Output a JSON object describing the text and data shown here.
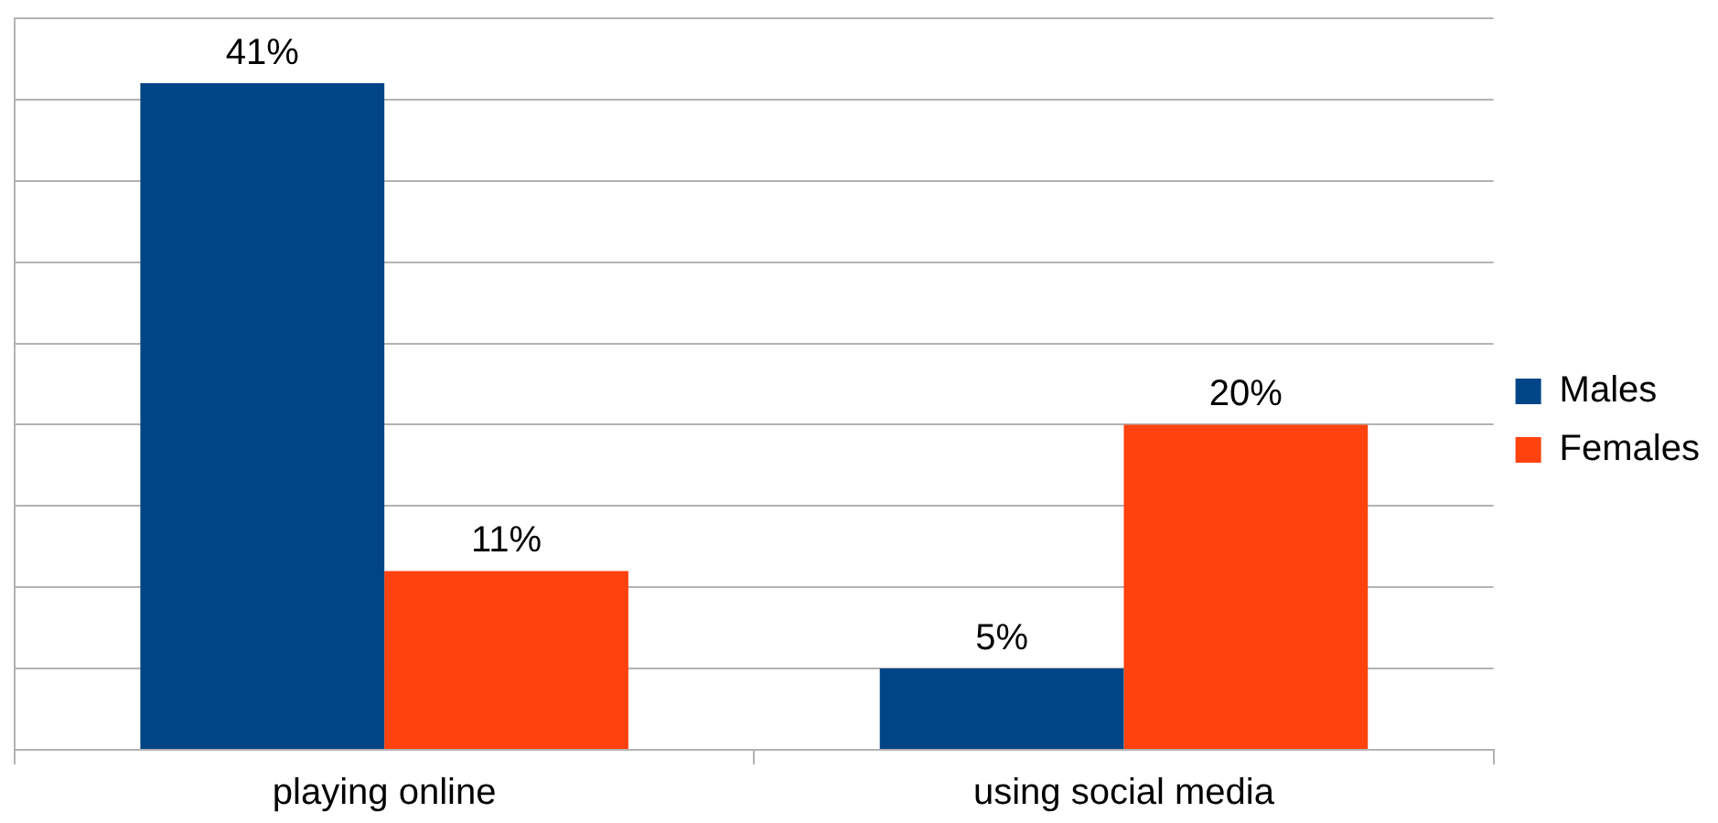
{
  "chart_data": {
    "type": "bar",
    "categories": [
      "playing online",
      "using social media"
    ],
    "series": [
      {
        "name": "Males",
        "color": "#004586",
        "values": [
          41,
          5
        ],
        "value_labels": [
          "41%",
          "5%"
        ]
      },
      {
        "name": "Females",
        "color": "#ff420e",
        "values": [
          11,
          20
        ],
        "value_labels": [
          "11%",
          "20%"
        ]
      }
    ],
    "ylim": [
      0,
      45
    ],
    "yticks": [
      {
        "value": 0,
        "label": null
      },
      {
        "value": 5,
        "label": null
      },
      {
        "value": 10,
        "label": null
      },
      {
        "value": 15,
        "label": null
      },
      {
        "value": 20,
        "label": null
      },
      {
        "value": 25,
        "label": null
      },
      {
        "value": 30,
        "label": null
      },
      {
        "value": 35,
        "label": null
      },
      {
        "value": 40,
        "label": null
      },
      {
        "value": 45,
        "label": null
      }
    ],
    "grid": "y",
    "legend": "right",
    "tick_labels": "x"
  }
}
